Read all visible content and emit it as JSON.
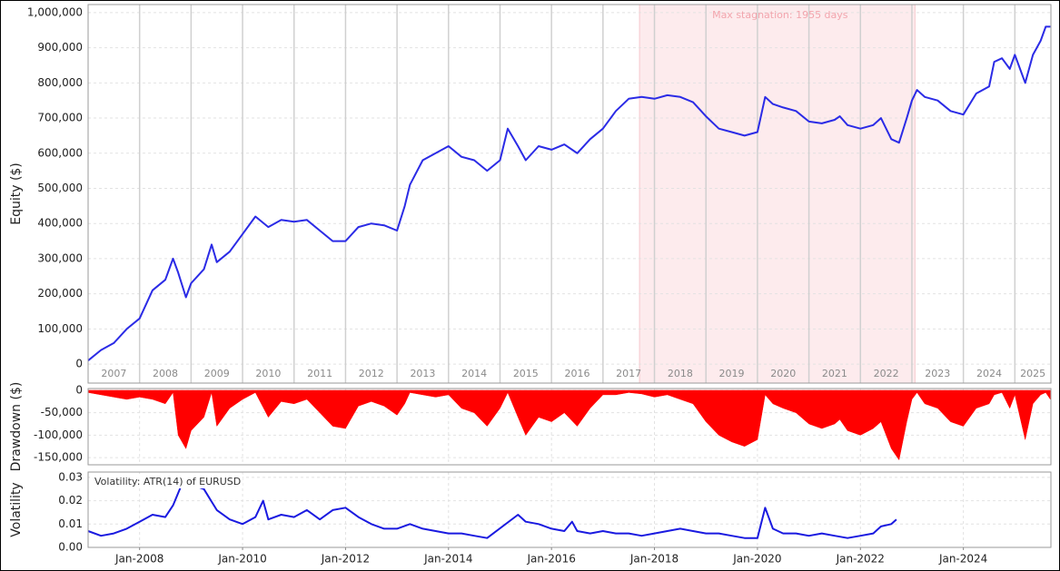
{
  "chart_data": [
    {
      "type": "line",
      "y_label": "Equity ($)",
      "color": "#2b2be6",
      "annotation": "Max stagnation: 1955 days",
      "shade": [
        2017.71,
        2023.06
      ],
      "xlim": [
        2007.0,
        2025.7
      ],
      "ylim": [
        -54000,
        1023000
      ],
      "yticks": [
        0,
        {
          "value": 100000,
          "label": "100,000"
        },
        {
          "value": 200000,
          "label": "200,000"
        },
        {
          "value": 300000,
          "label": "300,000"
        },
        {
          "value": 400000,
          "label": "400,000"
        },
        {
          "value": 500000,
          "label": "500,000"
        },
        {
          "value": 600000,
          "label": "600,000"
        },
        {
          "value": 700000,
          "label": "700,000"
        },
        {
          "value": 800000,
          "label": "800,000"
        },
        {
          "value": 900000,
          "label": "900,000"
        },
        {
          "value": 1000000,
          "label": "1,000,000"
        }
      ],
      "year_labels": [
        2007,
        2008,
        2009,
        2010,
        2011,
        2012,
        2013,
        2014,
        2015,
        2016,
        2017,
        2018,
        2019,
        2020,
        2021,
        2022,
        2023,
        2024,
        2025
      ],
      "x": [
        2007.0,
        2007.25,
        2007.5,
        2007.75,
        2008.0,
        2008.25,
        2008.5,
        2008.65,
        2008.75,
        2008.9,
        2009.0,
        2009.25,
        2009.4,
        2009.5,
        2009.75,
        2010.0,
        2010.25,
        2010.5,
        2010.75,
        2011.0,
        2011.25,
        2011.5,
        2011.75,
        2012.0,
        2012.25,
        2012.5,
        2012.75,
        2013.0,
        2013.15,
        2013.25,
        2013.5,
        2013.75,
        2014.0,
        2014.25,
        2014.5,
        2014.75,
        2015.0,
        2015.15,
        2015.35,
        2015.5,
        2015.75,
        2016.0,
        2016.25,
        2016.5,
        2016.75,
        2017.0,
        2017.25,
        2017.5,
        2017.75,
        2018.0,
        2018.25,
        2018.5,
        2018.75,
        2019.0,
        2019.25,
        2019.5,
        2019.75,
        2020.0,
        2020.15,
        2020.3,
        2020.5,
        2020.75,
        2021.0,
        2021.25,
        2021.5,
        2021.6,
        2021.75,
        2022.0,
        2022.25,
        2022.4,
        2022.6,
        2022.75,
        2022.9,
        2023.0,
        2023.1,
        2023.25,
        2023.5,
        2023.75,
        2024.0,
        2024.25,
        2024.5,
        2024.6,
        2024.75,
        2024.9,
        2025.0,
        2025.2,
        2025.35,
        2025.5,
        2025.6,
        2025.69
      ],
      "values": [
        10000,
        40000,
        60000,
        100000,
        130000,
        210000,
        240000,
        300000,
        260000,
        190000,
        230000,
        270000,
        340000,
        290000,
        320000,
        370000,
        420000,
        390000,
        410000,
        405000,
        410000,
        380000,
        350000,
        350000,
        390000,
        400000,
        395000,
        380000,
        450000,
        510000,
        580000,
        600000,
        620000,
        590000,
        580000,
        550000,
        580000,
        670000,
        620000,
        580000,
        620000,
        610000,
        625000,
        600000,
        640000,
        670000,
        720000,
        755000,
        760000,
        755000,
        765000,
        760000,
        745000,
        705000,
        670000,
        660000,
        650000,
        660000,
        760000,
        740000,
        730000,
        720000,
        690000,
        685000,
        695000,
        705000,
        680000,
        670000,
        680000,
        700000,
        640000,
        630000,
        700000,
        750000,
        780000,
        760000,
        750000,
        720000,
        710000,
        770000,
        790000,
        860000,
        870000,
        840000,
        880000,
        800000,
        880000,
        920000,
        960000,
        960000
      ]
    },
    {
      "type": "area",
      "y_label": "Drawdown ($)",
      "color": "#ff0000",
      "xlim": [
        2007.0,
        2025.7
      ],
      "ylim": [
        -166000,
        4000
      ],
      "yticks": [
        0,
        {
          "value": -50000,
          "label": "-50,000"
        },
        {
          "value": -100000,
          "label": "-100,000"
        },
        {
          "value": -150000,
          "label": "-150,000"
        }
      ],
      "x": [
        2007.0,
        2007.25,
        2007.5,
        2007.75,
        2008.0,
        2008.25,
        2008.5,
        2008.65,
        2008.75,
        2008.9,
        2009.0,
        2009.25,
        2009.4,
        2009.5,
        2009.75,
        2010.0,
        2010.25,
        2010.5,
        2010.75,
        2011.0,
        2011.25,
        2011.5,
        2011.75,
        2012.0,
        2012.25,
        2012.5,
        2012.75,
        2013.0,
        2013.15,
        2013.25,
        2013.5,
        2013.75,
        2014.0,
        2014.25,
        2014.5,
        2014.75,
        2015.0,
        2015.15,
        2015.35,
        2015.5,
        2015.75,
        2016.0,
        2016.25,
        2016.5,
        2016.75,
        2017.0,
        2017.25,
        2017.5,
        2017.75,
        2018.0,
        2018.25,
        2018.5,
        2018.75,
        2019.0,
        2019.25,
        2019.5,
        2019.75,
        2020.0,
        2020.15,
        2020.3,
        2020.5,
        2020.75,
        2021.0,
        2021.25,
        2021.5,
        2021.6,
        2021.75,
        2022.0,
        2022.25,
        2022.4,
        2022.6,
        2022.75,
        2022.9,
        2023.0,
        2023.1,
        2023.25,
        2023.5,
        2023.75,
        2024.0,
        2024.25,
        2024.5,
        2024.6,
        2024.75,
        2024.9,
        2025.0,
        2025.2,
        2025.35,
        2025.5,
        2025.6,
        2025.69
      ],
      "values": [
        -5000,
        -10000,
        -15000,
        -20000,
        -15000,
        -20000,
        -30000,
        -5000,
        -100000,
        -130000,
        -90000,
        -60000,
        -5000,
        -80000,
        -40000,
        -20000,
        -5000,
        -60000,
        -25000,
        -30000,
        -20000,
        -50000,
        -80000,
        -85000,
        -35000,
        -25000,
        -35000,
        -55000,
        -30000,
        -5000,
        -10000,
        -15000,
        -10000,
        -40000,
        -50000,
        -80000,
        -40000,
        -5000,
        -60000,
        -100000,
        -60000,
        -70000,
        -50000,
        -80000,
        -40000,
        -10000,
        -10000,
        -5000,
        -8000,
        -15000,
        -10000,
        -20000,
        -30000,
        -70000,
        -100000,
        -115000,
        -125000,
        -110000,
        -10000,
        -30000,
        -40000,
        -50000,
        -75000,
        -85000,
        -75000,
        -65000,
        -90000,
        -100000,
        -85000,
        -70000,
        -130000,
        -155000,
        -70000,
        -20000,
        -5000,
        -30000,
        -40000,
        -70000,
        -80000,
        -40000,
        -30000,
        -10000,
        -5000,
        -40000,
        -10000,
        -110000,
        -30000,
        -10000,
        -5000,
        -20000
      ]
    },
    {
      "type": "line",
      "y_label": "Volatility",
      "color": "#1a1ae0",
      "annotation": "Volatility: ATR(14) of EURUSD",
      "xlim": [
        2007.0,
        2025.7
      ],
      "ylim": [
        0,
        0.0323
      ],
      "yticks": [
        {
          "value": 0,
          "label": "0.00"
        },
        0.01,
        0.02,
        0.03
      ],
      "xticks": [
        {
          "value": 2008,
          "label": "Jan-2008"
        },
        {
          "value": 2010,
          "label": "Jan-2010"
        },
        {
          "value": 2012,
          "label": "Jan-2012"
        },
        {
          "value": 2014,
          "label": "Jan-2014"
        },
        {
          "value": 2016,
          "label": "Jan-2016"
        },
        {
          "value": 2018,
          "label": "Jan-2018"
        },
        {
          "value": 2020,
          "label": "Jan-2020"
        },
        {
          "value": 2022,
          "label": "Jan-2022"
        },
        {
          "value": 2024,
          "label": "Jan-2024"
        }
      ],
      "x": [
        2007.0,
        2007.25,
        2007.5,
        2007.75,
        2008.0,
        2008.25,
        2008.5,
        2008.65,
        2008.8,
        2008.9,
        2009.0,
        2009.25,
        2009.5,
        2009.75,
        2010.0,
        2010.25,
        2010.4,
        2010.5,
        2010.75,
        2011.0,
        2011.25,
        2011.5,
        2011.75,
        2012.0,
        2012.25,
        2012.5,
        2012.75,
        2013.0,
        2013.25,
        2013.5,
        2013.75,
        2014.0,
        2014.25,
        2014.5,
        2014.75,
        2015.35,
        2015.5,
        2015.75,
        2016.0,
        2016.25,
        2016.4,
        2016.5,
        2016.75,
        2017.0,
        2017.25,
        2017.5,
        2017.75,
        2018.0,
        2018.25,
        2018.5,
        2018.75,
        2019.0,
        2019.25,
        2019.5,
        2019.75,
        2020.0,
        2020.15,
        2020.3,
        2020.5,
        2020.75,
        2021.0,
        2021.25,
        2021.5,
        2021.75,
        2022.0,
        2022.25,
        2022.4,
        2022.6,
        2022.7
      ],
      "values": [
        0.007,
        0.005,
        0.006,
        0.008,
        0.011,
        0.014,
        0.013,
        0.018,
        0.026,
        0.031,
        0.027,
        0.025,
        0.016,
        0.012,
        0.01,
        0.013,
        0.02,
        0.012,
        0.014,
        0.013,
        0.016,
        0.012,
        0.016,
        0.017,
        0.013,
        0.01,
        0.008,
        0.008,
        0.01,
        0.008,
        0.007,
        0.006,
        0.006,
        0.005,
        0.004,
        0.014,
        0.011,
        0.01,
        0.008,
        0.007,
        0.011,
        0.007,
        0.006,
        0.007,
        0.006,
        0.006,
        0.005,
        0.006,
        0.007,
        0.008,
        0.007,
        0.006,
        0.006,
        0.005,
        0.004,
        0.004,
        0.017,
        0.008,
        0.006,
        0.006,
        0.005,
        0.006,
        0.005,
        0.004,
        0.005,
        0.006,
        0.009,
        0.01,
        0.012
      ]
    }
  ]
}
